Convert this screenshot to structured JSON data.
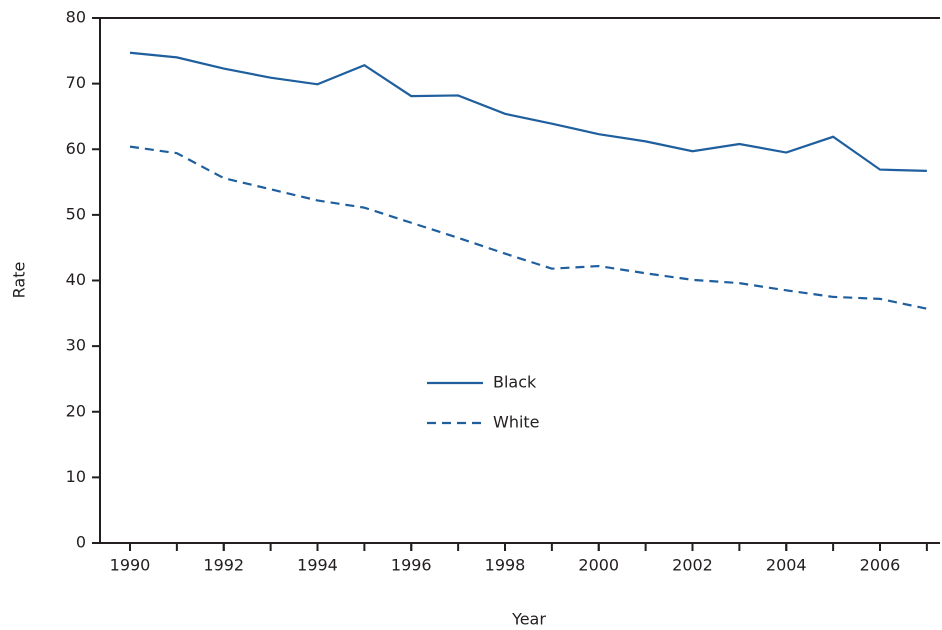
{
  "chart_data": {
    "type": "line",
    "xlabel": "Year",
    "ylabel": "Rate",
    "x": [
      1990,
      1991,
      1992,
      1993,
      1994,
      1995,
      1996,
      1997,
      1998,
      1999,
      2000,
      2001,
      2002,
      2003,
      2004,
      2005,
      2006,
      2007
    ],
    "series": [
      {
        "name": "Black",
        "color": "#1f5f9e",
        "dash": "solid",
        "values": [
          74.7,
          74.0,
          72.3,
          70.9,
          69.9,
          72.8,
          68.1,
          68.2,
          65.4,
          63.9,
          62.3,
          61.2,
          59.7,
          60.8,
          59.5,
          61.9,
          56.9,
          56.7
        ]
      },
      {
        "name": "White",
        "color": "#1f5f9e",
        "dash": "dashed",
        "values": [
          60.4,
          59.4,
          55.6,
          53.9,
          52.2,
          51.1,
          48.8,
          46.5,
          44.1,
          41.8,
          42.2,
          41.1,
          40.1,
          39.6,
          38.5,
          37.5,
          37.2,
          35.7
        ]
      }
    ],
    "xlim": [
      1989.36,
      2007.28
    ],
    "xticks": [
      1990,
      1992,
      1994,
      1996,
      1998,
      2000,
      2002,
      2004,
      2006
    ],
    "ylim": [
      0,
      80
    ],
    "yticks": [
      0,
      10,
      20,
      30,
      40,
      50,
      60,
      70,
      80
    ],
    "legend": "center"
  }
}
